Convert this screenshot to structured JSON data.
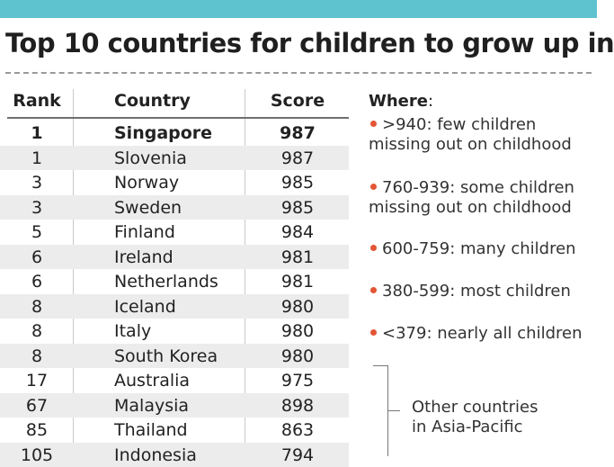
{
  "chart_data": {
    "type": "table",
    "title": "Top 10 countries for children to grow up in",
    "columns": [
      "Rank",
      "Country",
      "Score"
    ],
    "rows": [
      {
        "rank": "1",
        "country": "Singapore",
        "score": "987",
        "highlight": true
      },
      {
        "rank": "1",
        "country": "Slovenia",
        "score": "987"
      },
      {
        "rank": "3",
        "country": "Norway",
        "score": "985"
      },
      {
        "rank": "3",
        "country": "Sweden",
        "score": "985"
      },
      {
        "rank": "5",
        "country": "Finland",
        "score": "984"
      },
      {
        "rank": "6",
        "country": "Ireland",
        "score": "981"
      },
      {
        "rank": "6",
        "country": "Netherlands",
        "score": "981"
      },
      {
        "rank": "8",
        "country": "Iceland",
        "score": "980"
      },
      {
        "rank": "8",
        "country": "Italy",
        "score": "980"
      },
      {
        "rank": "8",
        "country": "South Korea",
        "score": "980"
      },
      {
        "rank": "17",
        "country": "Australia",
        "score": "975"
      },
      {
        "rank": "67",
        "country": "Malaysia",
        "score": "898"
      },
      {
        "rank": "85",
        "country": "Thailand",
        "score": "863"
      },
      {
        "rank": "105",
        "country": "Indonesia",
        "score": "794"
      }
    ],
    "legend": {
      "title": "Where",
      "items": [
        {
          "line1": ">940: few children",
          "line2": "missing out on childhood"
        },
        {
          "line1": "760-939: some children",
          "line2": "missing out on childhood"
        },
        {
          "line1": "600-759: many children",
          "line2": ""
        },
        {
          "line1": "380-599: most children",
          "line2": ""
        },
        {
          "line1": "<379: nearly all children",
          "line2": ""
        }
      ]
    },
    "annotation": {
      "line1": "Other countries",
      "line2": "in Asia-Pacific"
    },
    "colors": {
      "header_bar": "#5fc2cf",
      "bullet": "#e35535",
      "row_shade": "#ececec"
    }
  }
}
